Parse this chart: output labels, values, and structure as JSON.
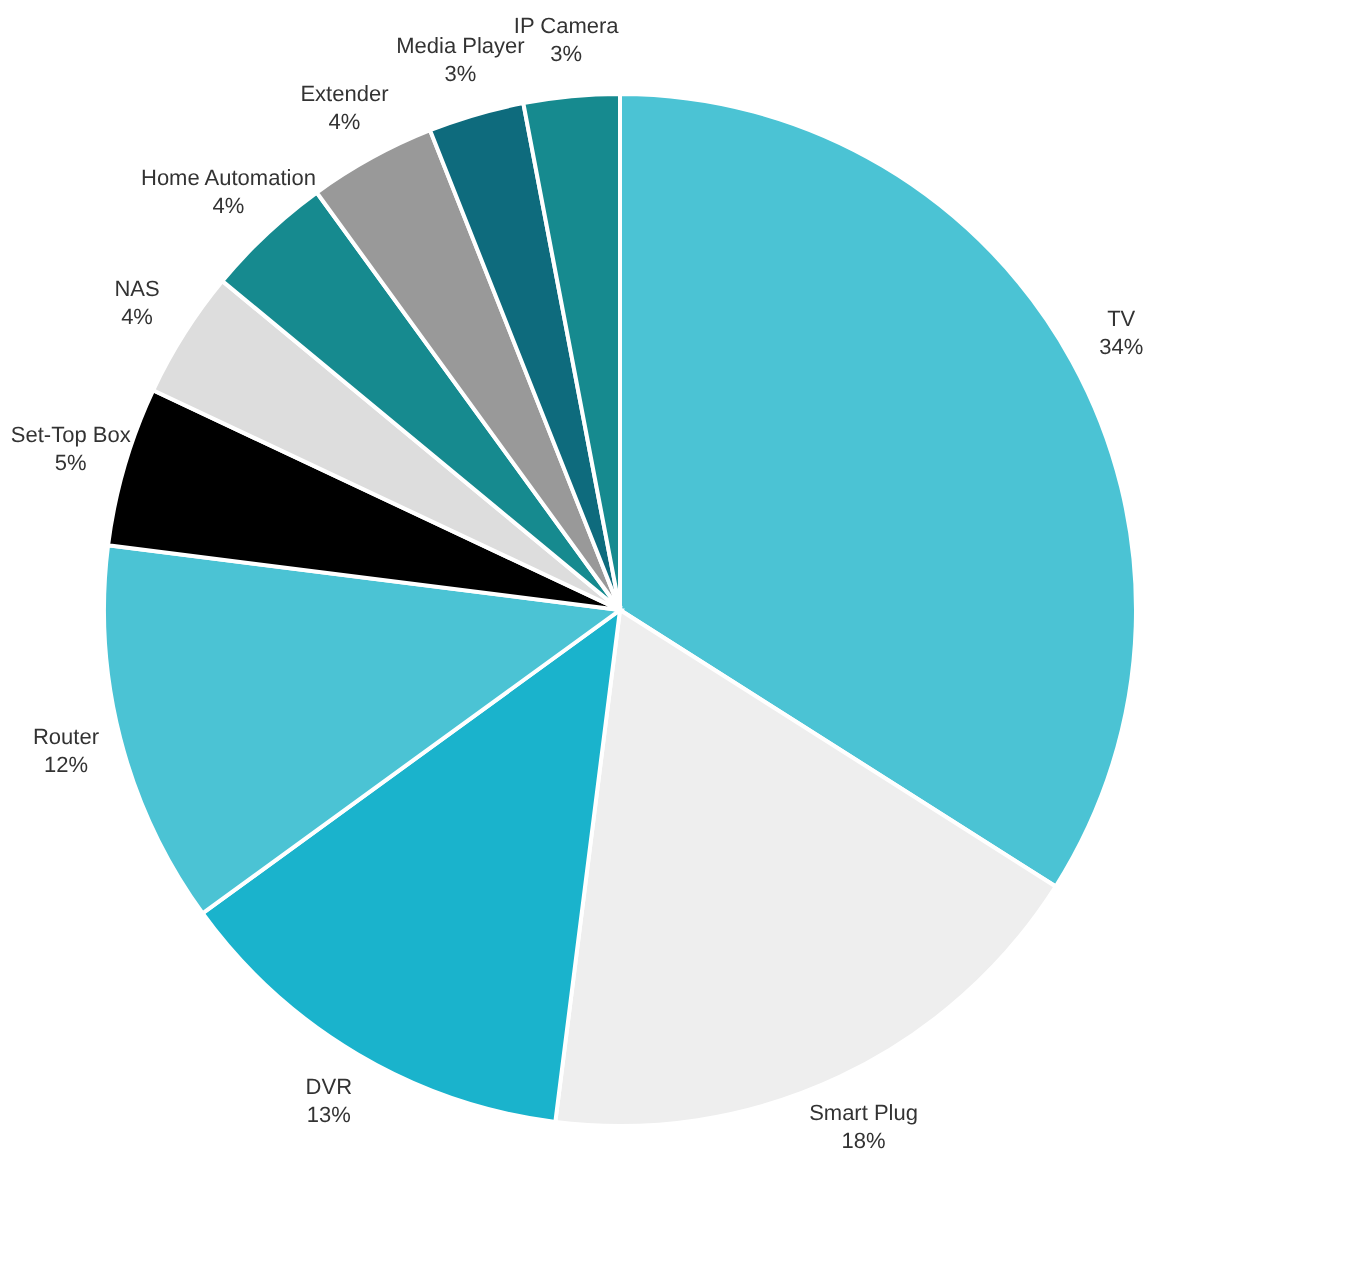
{
  "chart_data": {
    "type": "pie",
    "categories": [
      "TV",
      "Smart Plug",
      "DVR",
      "Router",
      "Set-Top Box",
      "NAS",
      "Home Automation",
      "Extender",
      "Media Player",
      "IP Camera"
    ],
    "values": [
      34,
      18,
      13,
      12,
      5,
      4,
      4,
      4,
      3,
      3
    ],
    "value_labels": [
      "34%",
      "18%",
      "13%",
      "12%",
      "5%",
      "4%",
      "4%",
      "4%",
      "3%",
      "3%"
    ],
    "colors": [
      "#4bc3d4",
      "#eeeeee",
      "#1ab3cc",
      "#4bc3d4",
      "#000000",
      "#dddddd",
      "#168a8f",
      "#999999",
      "#0e6b7d",
      "#168a8f"
    ],
    "legend": false
  }
}
